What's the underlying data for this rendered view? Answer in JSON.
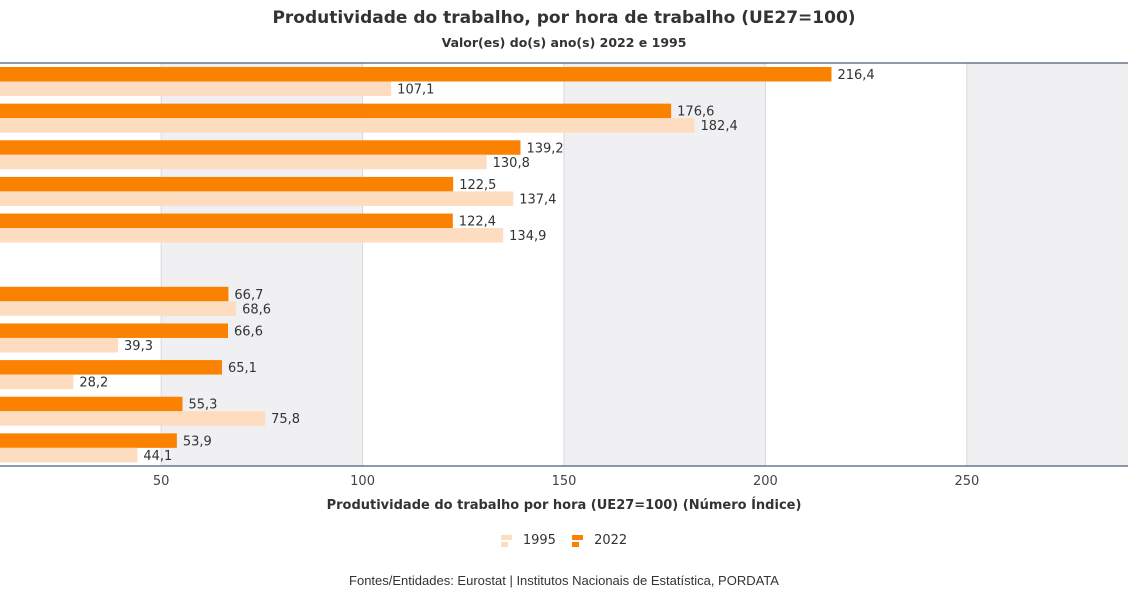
{
  "title": "Produtividade do trabalho, por hora de trabalho (UE27=100)",
  "subtitle": "Valor(es) do(s) ano(s) 2022 e 1995",
  "source": "Fontes/Entidades: Eurostat | Institutos Nacionais de Estatística, PORDATA",
  "colors": {
    "s1995": "#fddcc0",
    "s2022": "#fb8200",
    "band": "#f0f0f2",
    "grid": "#d9d9d9",
    "axis": "#4c5c78"
  },
  "legend": [
    {
      "label": "1995",
      "color": "#fddcc0"
    },
    {
      "label": "2022",
      "color": "#fb8200"
    }
  ],
  "chart_data": {
    "type": "bar",
    "orientation": "horizontal",
    "title": "Produtividade do trabalho, por hora de trabalho (UE27=100)",
    "subtitle": "Valor(es) do(s) ano(s) 2022 e 1995",
    "xlabel": "Produtividade do trabalho por hora (UE27=100) (Número Índice)",
    "ylabel": "",
    "xlim": [
      10,
      290
    ],
    "xticks": [
      50,
      100,
      150,
      200,
      250
    ],
    "grid": true,
    "legend_position": "bottom",
    "categories": [
      "",
      "",
      "",
      "",
      "",
      "",
      "",
      "",
      "",
      "",
      ""
    ],
    "series": [
      {
        "name": "2022",
        "values": [
          216.4,
          176.6,
          139.2,
          122.5,
          122.4,
          null,
          66.7,
          66.6,
          65.1,
          55.3,
          53.9
        ],
        "labels": [
          "216,4",
          "176,6",
          "139,2",
          "122,5",
          "122,4",
          "",
          "66,7",
          "66,6",
          "65,1",
          "55,3",
          "53,9"
        ]
      },
      {
        "name": "1995",
        "values": [
          107.1,
          182.4,
          130.8,
          137.4,
          134.9,
          null,
          68.6,
          39.3,
          28.2,
          75.8,
          44.1
        ],
        "labels": [
          "107,1",
          "182,4",
          "130,8",
          "137,4",
          "134,9",
          "",
          "68,6",
          "39,3",
          "28,2",
          "75,8",
          "44,1"
        ]
      }
    ]
  }
}
